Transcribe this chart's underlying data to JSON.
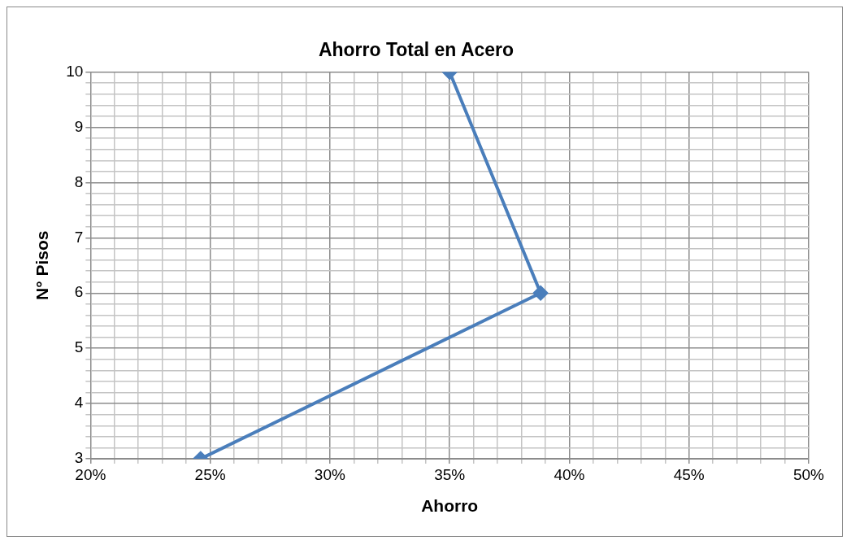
{
  "chart_data": {
    "type": "line",
    "title": "Ahorro Total en Acero",
    "xlabel": "Ahorro",
    "ylabel": "N° Pisos",
    "x": [
      24.6,
      38.8,
      35.0
    ],
    "series": [
      {
        "color": "#4a7ebb",
        "values": [
          3,
          6,
          10
        ]
      }
    ],
    "xlim": [
      20,
      50
    ],
    "xticks": [
      {
        "value": 20,
        "label": "20%"
      },
      {
        "value": 21,
        "label": null
      },
      {
        "value": 22,
        "label": null
      },
      {
        "value": 23,
        "label": null
      },
      {
        "value": 24,
        "label": null
      },
      {
        "value": 25,
        "label": "25%"
      },
      {
        "value": 26,
        "label": null
      },
      {
        "value": 27,
        "label": null
      },
      {
        "value": 28,
        "label": null
      },
      {
        "value": 29,
        "label": null
      },
      {
        "value": 30,
        "label": "30%"
      },
      {
        "value": 31,
        "label": null
      },
      {
        "value": 32,
        "label": null
      },
      {
        "value": 33,
        "label": null
      },
      {
        "value": 34,
        "label": null
      },
      {
        "value": 35,
        "label": "35%"
      },
      {
        "value": 36,
        "label": null
      },
      {
        "value": 37,
        "label": null
      },
      {
        "value": 38,
        "label": null
      },
      {
        "value": 39,
        "label": null
      },
      {
        "value": 40,
        "label": "40%"
      },
      {
        "value": 41,
        "label": null
      },
      {
        "value": 42,
        "label": null
      },
      {
        "value": 43,
        "label": null
      },
      {
        "value": 44,
        "label": null
      },
      {
        "value": 45,
        "label": "45%"
      },
      {
        "value": 46,
        "label": null
      },
      {
        "value": 47,
        "label": null
      },
      {
        "value": 48,
        "label": null
      },
      {
        "value": 49,
        "label": null
      },
      {
        "value": 50,
        "label": "50%"
      }
    ],
    "ylim": [
      3,
      10
    ],
    "yticks": [
      3,
      {
        "value": 3.2,
        "label": null
      },
      {
        "value": 3.4,
        "label": null
      },
      {
        "value": 3.6,
        "label": null
      },
      {
        "value": 3.8,
        "label": null
      },
      4,
      {
        "value": 4.2,
        "label": null
      },
      {
        "value": 4.4,
        "label": null
      },
      {
        "value": 4.6,
        "label": null
      },
      {
        "value": 4.8,
        "label": null
      },
      5,
      {
        "value": 5.2,
        "label": null
      },
      {
        "value": 5.4,
        "label": null
      },
      {
        "value": 5.6,
        "label": null
      },
      {
        "value": 5.8,
        "label": null
      },
      6,
      {
        "value": 6.2,
        "label": null
      },
      {
        "value": 6.4,
        "label": null
      },
      {
        "value": 6.6,
        "label": null
      },
      {
        "value": 6.8,
        "label": null
      },
      7,
      {
        "value": 7.2,
        "label": null
      },
      {
        "value": 7.4,
        "label": null
      },
      {
        "value": 7.6,
        "label": null
      },
      {
        "value": 7.8,
        "label": null
      },
      8,
      {
        "value": 8.2,
        "label": null
      },
      {
        "value": 8.4,
        "label": null
      },
      {
        "value": 8.6,
        "label": null
      },
      {
        "value": 8.8,
        "label": null
      },
      9,
      {
        "value": 9.2,
        "label": null
      },
      {
        "value": 9.4,
        "label": null
      },
      {
        "value": 9.6,
        "label": null
      },
      {
        "value": 9.8,
        "label": null
      },
      10
    ],
    "grid": true,
    "legend": false,
    "marker": "diamond",
    "line_style": "solid"
  }
}
